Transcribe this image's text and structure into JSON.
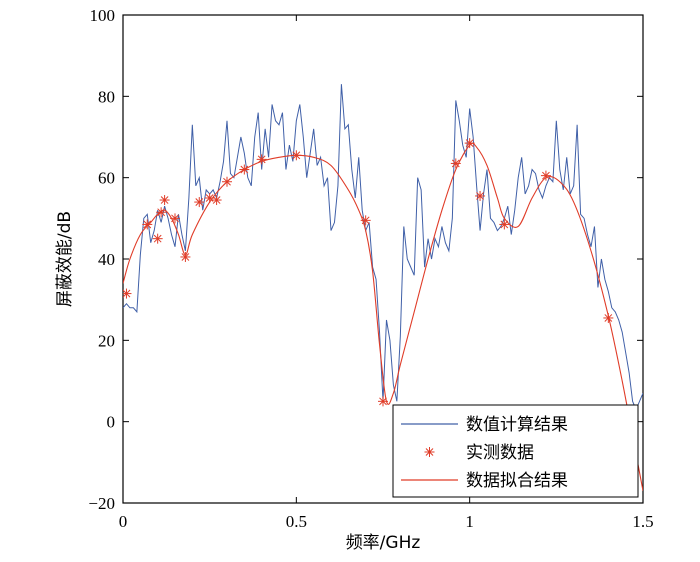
{
  "chart_data": {
    "type": "line",
    "title": "",
    "xlabel": "频率/GHz",
    "ylabel": "屏蔽效能/dB",
    "xlim": [
      0,
      1.5
    ],
    "ylim": [
      -20,
      100
    ],
    "xticks": [
      0,
      0.5,
      1,
      1.5
    ],
    "xtick_labels": [
      "0",
      "0.5",
      "1",
      "1.5"
    ],
    "yticks": [
      -20,
      0,
      20,
      40,
      60,
      80,
      100
    ],
    "ytick_labels": [
      "−20",
      "0",
      "20",
      "40",
      "60",
      "80",
      "100"
    ],
    "grid": false,
    "legend_position": "bottom-right",
    "legend": [
      "数值计算结果",
      "实测数据",
      "数据拟合结果"
    ],
    "colors": {
      "numerical": "#4060a8",
      "measured": "#e03c28",
      "fitted": "#e03c28"
    },
    "series": [
      {
        "name": "数值计算结果",
        "style": "line",
        "x": [
          0,
          0.01,
          0.02,
          0.03,
          0.04,
          0.05,
          0.06,
          0.07,
          0.08,
          0.09,
          0.1,
          0.11,
          0.12,
          0.13,
          0.14,
          0.15,
          0.16,
          0.17,
          0.18,
          0.19,
          0.2,
          0.21,
          0.22,
          0.23,
          0.24,
          0.25,
          0.26,
          0.27,
          0.28,
          0.29,
          0.3,
          0.31,
          0.32,
          0.33,
          0.34,
          0.35,
          0.36,
          0.37,
          0.38,
          0.39,
          0.4,
          0.41,
          0.42,
          0.43,
          0.44,
          0.45,
          0.46,
          0.47,
          0.48,
          0.49,
          0.5,
          0.51,
          0.52,
          0.53,
          0.54,
          0.55,
          0.56,
          0.57,
          0.58,
          0.59,
          0.6,
          0.61,
          0.62,
          0.63,
          0.64,
          0.65,
          0.66,
          0.67,
          0.68,
          0.69,
          0.7,
          0.71,
          0.72,
          0.73,
          0.74,
          0.75,
          0.76,
          0.77,
          0.78,
          0.79,
          0.8,
          0.81,
          0.82,
          0.83,
          0.84,
          0.85,
          0.86,
          0.87,
          0.88,
          0.89,
          0.9,
          0.91,
          0.92,
          0.93,
          0.94,
          0.95,
          0.96,
          0.97,
          0.98,
          0.99,
          1.0,
          1.01,
          1.02,
          1.03,
          1.04,
          1.05,
          1.06,
          1.07,
          1.08,
          1.09,
          1.1,
          1.11,
          1.12,
          1.13,
          1.14,
          1.15,
          1.16,
          1.17,
          1.18,
          1.19,
          1.2,
          1.21,
          1.22,
          1.23,
          1.24,
          1.25,
          1.26,
          1.27,
          1.28,
          1.29,
          1.3,
          1.31,
          1.32,
          1.33,
          1.34,
          1.35,
          1.36,
          1.37,
          1.38,
          1.39,
          1.4,
          1.41,
          1.42,
          1.43,
          1.44,
          1.45,
          1.46,
          1.47,
          1.48,
          1.49,
          1.5
        ],
        "y": [
          28,
          29,
          28,
          28,
          27,
          41,
          50,
          51,
          44,
          47,
          52,
          49,
          53,
          50,
          46,
          43,
          51,
          46,
          42,
          55,
          73,
          58,
          60,
          52,
          57,
          56,
          57,
          55,
          59,
          64,
          74,
          61,
          60,
          65,
          70,
          66,
          60,
          58,
          70,
          76,
          62,
          72,
          65,
          78,
          74,
          73,
          76,
          62,
          68,
          64,
          74,
          78,
          70,
          60,
          66,
          72,
          63,
          65,
          58,
          60,
          47,
          49,
          58,
          83,
          72,
          73,
          62,
          55,
          65,
          52,
          47,
          49,
          38,
          35,
          22,
          5,
          25,
          20,
          9,
          5,
          21,
          48,
          40,
          38,
          36,
          60,
          57,
          38,
          45,
          40,
          45,
          43,
          48,
          44,
          42,
          50,
          79,
          74,
          68,
          65,
          77,
          70,
          58,
          47,
          56,
          62,
          50,
          49,
          47,
          48,
          50,
          53,
          46,
          52,
          60,
          65,
          56,
          58,
          62,
          61,
          57,
          55,
          58,
          60,
          59,
          74,
          62,
          57,
          65,
          56,
          58,
          73,
          51,
          50,
          46,
          43,
          48,
          33,
          40,
          35,
          32,
          28,
          27,
          25,
          22,
          17,
          12,
          5,
          3,
          5,
          7
        ]
      },
      {
        "name": "实测数据",
        "style": "marker",
        "x": [
          0.01,
          0.07,
          0.1,
          0.11,
          0.12,
          0.15,
          0.18,
          0.22,
          0.25,
          0.27,
          0.3,
          0.35,
          0.4,
          0.5,
          0.7,
          0.75,
          0.96,
          1.0,
          1.03,
          1.1,
          1.22,
          1.4
        ],
        "y": [
          31.5,
          48.5,
          45,
          51.5,
          54.5,
          50,
          40.5,
          54,
          55,
          54.5,
          59,
          62,
          64.5,
          65.5,
          49.5,
          5,
          63.5,
          68.5,
          55.5,
          48.5,
          60.5,
          25.5
        ]
      },
      {
        "name": "数据拟合结果",
        "style": "line",
        "x": [
          0,
          0.02,
          0.05,
          0.08,
          0.1,
          0.12,
          0.14,
          0.16,
          0.18,
          0.2,
          0.25,
          0.3,
          0.35,
          0.4,
          0.45,
          0.5,
          0.55,
          0.6,
          0.65,
          0.68,
          0.7,
          0.72,
          0.74,
          0.76,
          0.78,
          0.8,
          0.84,
          0.88,
          0.92,
          0.96,
          1.0,
          1.02,
          1.05,
          1.08,
          1.1,
          1.14,
          1.18,
          1.22,
          1.26,
          1.3,
          1.35,
          1.4,
          1.44,
          1.48,
          1.5
        ],
        "y": [
          34,
          40,
          46,
          49,
          51,
          52,
          50,
          46,
          41,
          46,
          54,
          59,
          62,
          64,
          65,
          65.5,
          65,
          63,
          57,
          52,
          47,
          37,
          19,
          5,
          7,
          14,
          27,
          40,
          52,
          62,
          68,
          67.5,
          63,
          55,
          50,
          48,
          55,
          60,
          59,
          54,
          42,
          26,
          10,
          -8,
          -17
        ]
      }
    ]
  }
}
